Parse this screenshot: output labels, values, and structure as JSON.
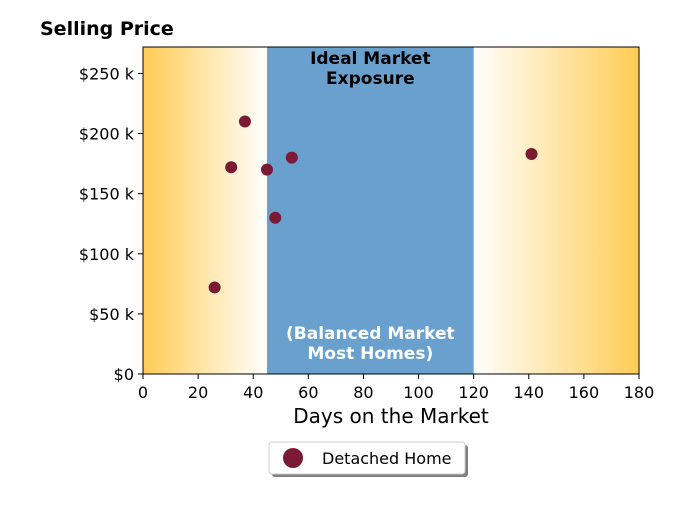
{
  "chart_data": {
    "type": "scatter",
    "title": "Selling Price",
    "xlabel": "Days on the Market",
    "ylabel": "",
    "xlim": [
      0,
      180
    ],
    "ylim": [
      0,
      272000
    ],
    "x_ticks": [
      0,
      20,
      40,
      60,
      80,
      100,
      120,
      140,
      160,
      180
    ],
    "x_tick_labels": [
      "0",
      "20",
      "40",
      "60",
      "80",
      "100",
      "120",
      "140",
      "160",
      "180"
    ],
    "y_ticks": [
      0,
      50000,
      100000,
      150000,
      200000,
      250000
    ],
    "y_tick_labels": [
      "$0",
      "$50 k",
      "$100 k",
      "$150 k",
      "$200 k",
      "$250 k"
    ],
    "grid": false,
    "legend_position": "bottom-center",
    "series": [
      {
        "name": "Detached Home",
        "color": "#7a1a35",
        "points": [
          {
            "x": 26,
            "y": 72000
          },
          {
            "x": 32,
            "y": 172000
          },
          {
            "x": 37,
            "y": 210000
          },
          {
            "x": 45,
            "y": 170000
          },
          {
            "x": 48,
            "y": 130000
          },
          {
            "x": 54,
            "y": 180000
          },
          {
            "x": 141,
            "y": 183000
          }
        ]
      }
    ],
    "bands": [
      {
        "from": 45,
        "to": 120,
        "color": "#6aa0cd",
        "label_top_lines": [
          "Ideal Market",
          "Exposure"
        ],
        "label_bottom_lines": [
          "(Balanced Market",
          "Most Homes)"
        ]
      }
    ],
    "gradient_color": "#ffcc55"
  }
}
